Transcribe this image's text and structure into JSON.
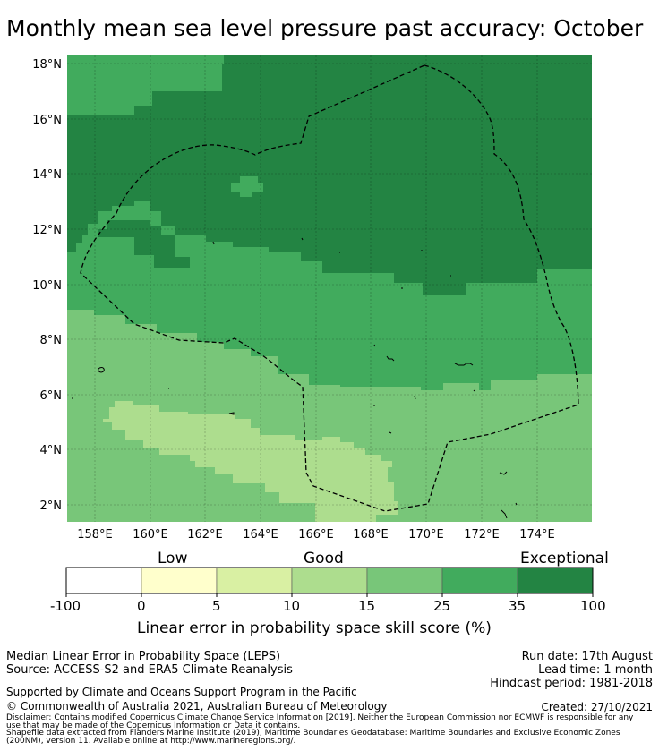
{
  "title": "Monthly mean sea level pressure past accuracy: October",
  "map": {
    "lon_range": [
      157.0,
      176.0
    ],
    "lat_range": [
      1.4,
      18.3
    ],
    "lat_ticks": [
      "18°N",
      "16°N",
      "14°N",
      "12°N",
      "10°N",
      "8°N",
      "6°N",
      "4°N",
      "2°N"
    ],
    "lon_ticks": [
      "158°E",
      "160°E",
      "162°E",
      "164°E",
      "166°E",
      "168°E",
      "170°E",
      "172°E",
      "174°E"
    ],
    "gridlines": true,
    "boundary": "dashed"
  },
  "colorbar": {
    "category_labels": [
      "Low",
      "Good",
      "Exceptional"
    ],
    "tick_labels": [
      "-100",
      "0",
      "5",
      "10",
      "15",
      "25",
      "35",
      "100"
    ],
    "colors": [
      "#ffffff",
      "#ffffcc",
      "#d9f0a3",
      "#addd8e",
      "#78c679",
      "#41ab5d",
      "#238443"
    ],
    "axis_label": "Linear error in probability space skill score (%)"
  },
  "footer": {
    "line1": "Median Linear Error in Probability Space (LEPS)",
    "line2": "Source: ACCESS-S2 and ERA5 Climate Reanalysis",
    "run_date": "Run date: 17th August",
    "lead_time": "Lead time: 1 month",
    "hindcast": "Hindcast period: 1981-2018",
    "supported": "Supported by Climate and Oceans Support Program in the Pacific",
    "copyright": "© Commonwealth of Australia 2021, Australian Bureau of Meteorology",
    "created": "Created: 27/10/2021",
    "disclaimer1": "Disclaimer: Contains modified Copernicus Climate Change Service Information [2019]. Neither the European Commission nor ECMWF is responsible for any",
    "disclaimer2": "use that may be made of the Copernicus Information or Data it contains.",
    "shapefile1": "Shapefile data extracted from Flanders Marine Institute (2019), Maritime Boundaries Geodatabase: Maritime Boundaries and Exclusive Economic Zones",
    "shapefile2": "(200NM), version 11. Available online at http://www.marineregions.org/."
  }
}
